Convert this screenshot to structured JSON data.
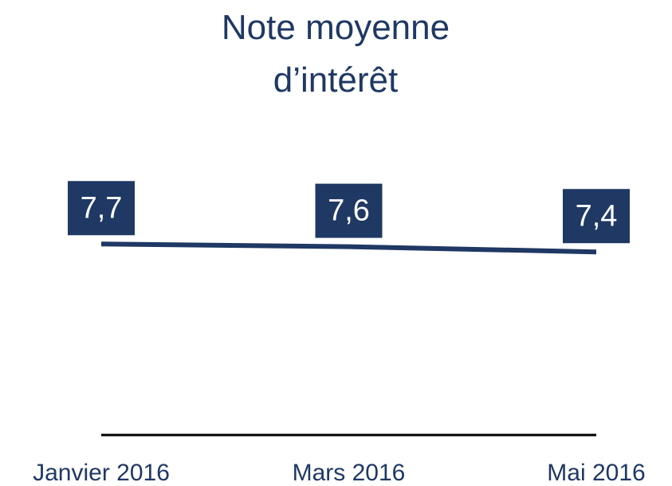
{
  "chart_data": {
    "type": "line",
    "title": "Note moyenne d’intérêt",
    "categories": [
      "Janvier 2016",
      "Mars 2016",
      "Mai 2016"
    ],
    "series": [
      {
        "name": "Note moyenne d’intérêt",
        "color": "#1f3864",
        "values": [
          7.7,
          7.6,
          7.4
        ],
        "value_labels": [
          "7,7",
          "7,6",
          "7,4"
        ]
      }
    ],
    "ylim": [
      0.5,
      10.5
    ]
  }
}
